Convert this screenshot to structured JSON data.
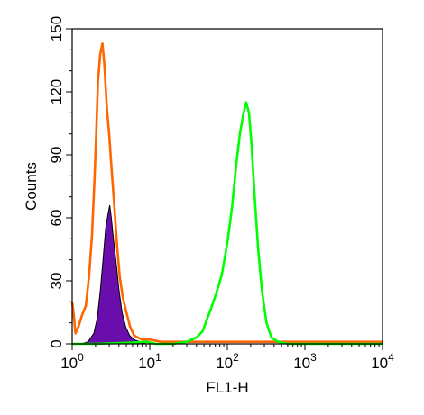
{
  "chart_data": {
    "type": "area",
    "xlabel": "FL1-H",
    "ylabel": "Counts",
    "x_scale": "log",
    "xlim": [
      1,
      10000
    ],
    "ylim": [
      0,
      150
    ],
    "grid": false,
    "x_ticks": [
      {
        "value": 1,
        "base": "10",
        "exp": "0"
      },
      {
        "value": 10,
        "base": "10",
        "exp": "1"
      },
      {
        "value": 100,
        "base": "10",
        "exp": "2"
      },
      {
        "value": 1000,
        "base": "10",
        "exp": "3"
      },
      {
        "value": 10000,
        "base": "10",
        "exp": "4"
      }
    ],
    "y_ticks": [
      {
        "value": 0,
        "label": "0"
      },
      {
        "value": 30,
        "label": "30"
      },
      {
        "value": 60,
        "label": "60"
      },
      {
        "value": 90,
        "label": "90"
      },
      {
        "value": 120,
        "label": "120"
      },
      {
        "value": 150,
        "label": "150"
      }
    ],
    "series": [
      {
        "style": "filled",
        "color": "#6a0dad",
        "outline": "#000000",
        "points": [
          [
            1.3,
            0
          ],
          [
            1.6,
            1
          ],
          [
            1.9,
            5
          ],
          [
            2.1,
            12
          ],
          [
            2.3,
            25
          ],
          [
            2.5,
            40
          ],
          [
            2.7,
            55
          ],
          [
            2.9,
            62
          ],
          [
            3.05,
            66
          ],
          [
            3.2,
            60
          ],
          [
            3.4,
            50
          ],
          [
            3.7,
            38
          ],
          [
            4.0,
            26
          ],
          [
            4.4,
            15
          ],
          [
            4.9,
            8
          ],
          [
            5.5,
            4
          ],
          [
            6.3,
            2
          ],
          [
            7.5,
            1
          ],
          [
            9,
            0
          ]
        ]
      },
      {
        "style": "line",
        "color": "#ff6600",
        "points": [
          [
            1.0,
            20
          ],
          [
            1.04,
            15
          ],
          [
            1.1,
            5
          ],
          [
            1.2,
            8
          ],
          [
            1.35,
            14
          ],
          [
            1.5,
            18
          ],
          [
            1.65,
            32
          ],
          [
            1.8,
            52
          ],
          [
            1.95,
            80
          ],
          [
            2.05,
            102
          ],
          [
            2.15,
            125
          ],
          [
            2.3,
            138
          ],
          [
            2.45,
            143
          ],
          [
            2.6,
            133
          ],
          [
            2.8,
            112
          ],
          [
            3.0,
            100
          ],
          [
            3.2,
            85
          ],
          [
            3.5,
            65
          ],
          [
            3.8,
            46
          ],
          [
            4.1,
            32
          ],
          [
            4.5,
            22
          ],
          [
            5.0,
            15
          ],
          [
            5.6,
            8
          ],
          [
            6.3,
            4
          ],
          [
            7.0,
            3
          ],
          [
            8.0,
            2
          ],
          [
            10,
            2
          ],
          [
            14,
            1
          ],
          [
            20,
            1
          ],
          [
            30,
            1
          ],
          [
            60,
            1
          ],
          [
            100,
            1
          ],
          [
            300,
            1
          ],
          [
            1000,
            1
          ],
          [
            10000,
            1
          ]
        ]
      },
      {
        "style": "line",
        "color": "#00ff00",
        "points": [
          [
            1,
            0
          ],
          [
            2,
            0
          ],
          [
            5,
            0.5
          ],
          [
            9,
            1
          ],
          [
            12,
            0
          ],
          [
            20,
            0
          ],
          [
            30,
            1
          ],
          [
            40,
            3
          ],
          [
            48,
            6
          ],
          [
            55,
            12
          ],
          [
            62,
            17
          ],
          [
            72,
            24
          ],
          [
            85,
            33
          ],
          [
            100,
            48
          ],
          [
            115,
            65
          ],
          [
            130,
            85
          ],
          [
            145,
            100
          ],
          [
            160,
            109
          ],
          [
            175,
            115
          ],
          [
            190,
            110
          ],
          [
            205,
            95
          ],
          [
            225,
            70
          ],
          [
            250,
            45
          ],
          [
            280,
            25
          ],
          [
            320,
            10
          ],
          [
            370,
            3
          ],
          [
            450,
            1
          ],
          [
            600,
            0
          ],
          [
            10000,
            0
          ]
        ]
      }
    ]
  }
}
